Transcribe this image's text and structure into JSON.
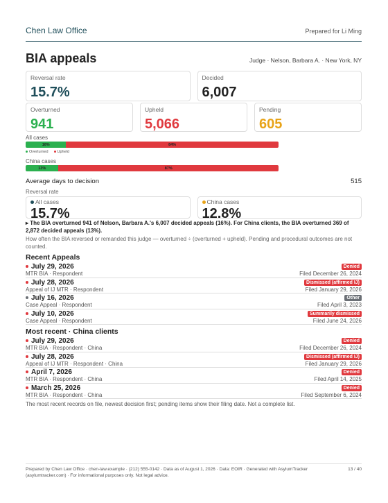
{
  "header": {
    "firm": "Chen Law Office",
    "prepared": "Prepared for Li Ming"
  },
  "title": "BIA appeals",
  "subtitle": "Judge · Nelson, Barbara A. · New York, NY",
  "stats": [
    {
      "label": "Reversal rate",
      "value": "15.7%",
      "color": "#1f4e5a"
    },
    {
      "label": "Decided",
      "value": "6,007",
      "color": "#222222"
    }
  ],
  "counts": [
    {
      "label": "Overturned",
      "value": "941",
      "color": "#2bb04f"
    },
    {
      "label": "Upheld",
      "value": "5,066",
      "color": "#e0393e"
    },
    {
      "label": "Pending",
      "value": "605",
      "color": "#e8a317"
    }
  ],
  "bars": [
    {
      "label": "All cases",
      "segments": [
        {
          "value": 16,
          "label": "16%",
          "color": "#2bb04f"
        },
        {
          "value": 84,
          "label": "84%",
          "color": "#e0393e"
        }
      ]
    },
    {
      "label": "China cases",
      "segments": [
        {
          "value": 13,
          "label": "13%",
          "color": "#2bb04f"
        },
        {
          "value": 87,
          "label": "87%",
          "color": "#e0393e"
        }
      ]
    }
  ],
  "legend": [
    {
      "name": "Overturned",
      "color": "#2bb04f"
    },
    {
      "name": "Upheld",
      "color": "#e0393e"
    }
  ],
  "avg_days": {
    "label": "Average days to decision",
    "value": "515"
  },
  "reversal": {
    "label": "Reversal rate",
    "items": [
      {
        "label": "All cases",
        "value": "15.7%",
        "color": "#1f4e5a"
      },
      {
        "label": "China cases",
        "value": "12.8%",
        "color": "#e8a317"
      }
    ]
  },
  "summary": "▸ The BIA overturned 941 of Nelson, Barbara A.'s 6,007 decided appeals (16%). For China clients, the BIA overturned 369 of 2,872 decided appeals (13%).",
  "note": "How often the BIA reversed or remanded this judge — overturned ÷ (overturned + upheld). Pending and procedural outcomes are not counted.",
  "recent": {
    "title": "Recent Appeals",
    "items": [
      {
        "date": "July 29, 2026",
        "detail": "MTR BIA · Respondent",
        "outcome": "Denied",
        "filed": "Filed December 26, 2024",
        "color": "#e0393e"
      },
      {
        "date": "July 28, 2026",
        "detail": "Appeal of IJ MTR · Respondent",
        "outcome": "Dismissed (affirmed IJ)",
        "filed": "Filed January 29, 2026",
        "color": "#e0393e"
      },
      {
        "date": "July 16, 2026",
        "detail": "Case Appeal · Respondent",
        "outcome": "Other",
        "filed": "Filed April 3, 2023",
        "color": "#6b6f75"
      },
      {
        "date": "July 10, 2026",
        "detail": "Case Appeal · Respondent",
        "outcome": "Summarily dismissed",
        "filed": "Filed June 24, 2026",
        "color": "#e0393e"
      }
    ]
  },
  "china": {
    "title": "Most recent · China clients",
    "items": [
      {
        "date": "July 29, 2026",
        "detail": "MTR BIA · Respondent · China",
        "outcome": "Denied",
        "filed": "Filed December 26, 2024",
        "color": "#e0393e"
      },
      {
        "date": "July 28, 2026",
        "detail": "Appeal of IJ MTR · Respondent · China",
        "outcome": "Dismissed (affirmed IJ)",
        "filed": "Filed January 29, 2026",
        "color": "#e0393e"
      },
      {
        "date": "April 7, 2026",
        "detail": "MTR BIA · Respondent · China",
        "outcome": "Denied",
        "filed": "Filed April 14, 2025",
        "color": "#e0393e"
      },
      {
        "date": "March 25, 2026",
        "detail": "MTR BIA · Respondent · China",
        "outcome": "Denied",
        "filed": "Filed September 6, 2024",
        "color": "#e0393e"
      }
    ]
  },
  "footnote": "The most recent records on file, newest decision first; pending items show their filing date. Not a complete list.",
  "footer": {
    "text": "Prepared by Chen Law Office · chen-law.example · (212) 555-0142 · Data as of August 1, 2026 · Data: EOIR · Generated with AsylumTracker (asylumtracker.com) · For informational purposes only. Not legal advice.",
    "page": "13 / 40"
  }
}
